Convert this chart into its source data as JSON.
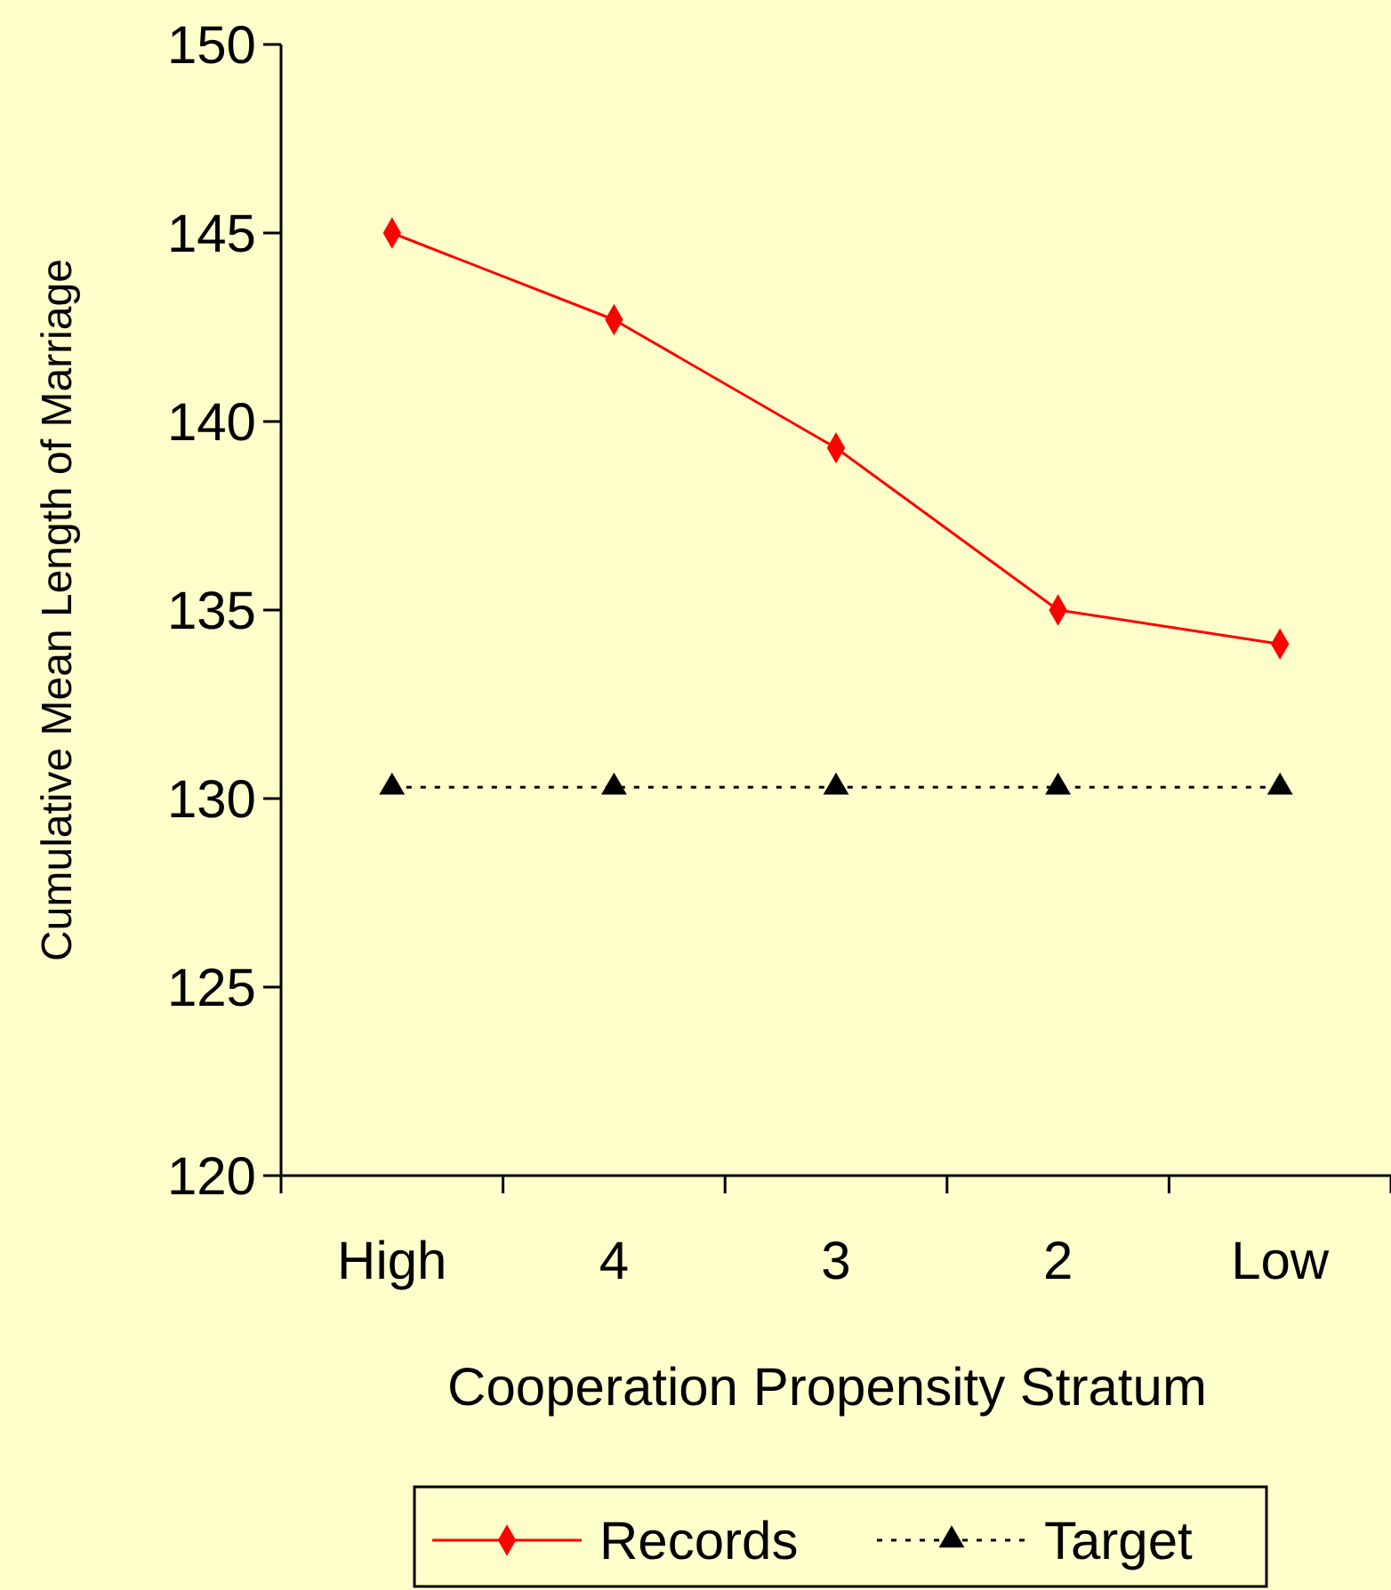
{
  "chart_data": {
    "type": "line",
    "xlabel": "Cooperation Propensity Stratum",
    "ylabel": "Cumulative Mean Length of Marriage",
    "categories": [
      "High",
      "4",
      "3",
      "2",
      "Low"
    ],
    "series": [
      {
        "name": "Records",
        "color": "#ff0000",
        "values": [
          145.0,
          142.7,
          139.3,
          135.0,
          134.1
        ],
        "marker": "diamond",
        "line_style": "solid"
      },
      {
        "name": "Target",
        "color": "#000000",
        "values": [
          130.3,
          130.3,
          130.3,
          130.3,
          130.3
        ],
        "marker": "triangle",
        "line_style": "dotted"
      }
    ],
    "ylim": [
      120,
      150
    ],
    "yticks": [
      120,
      125,
      130,
      135,
      140,
      145,
      150
    ],
    "grid": false,
    "legend": "bottom"
  }
}
